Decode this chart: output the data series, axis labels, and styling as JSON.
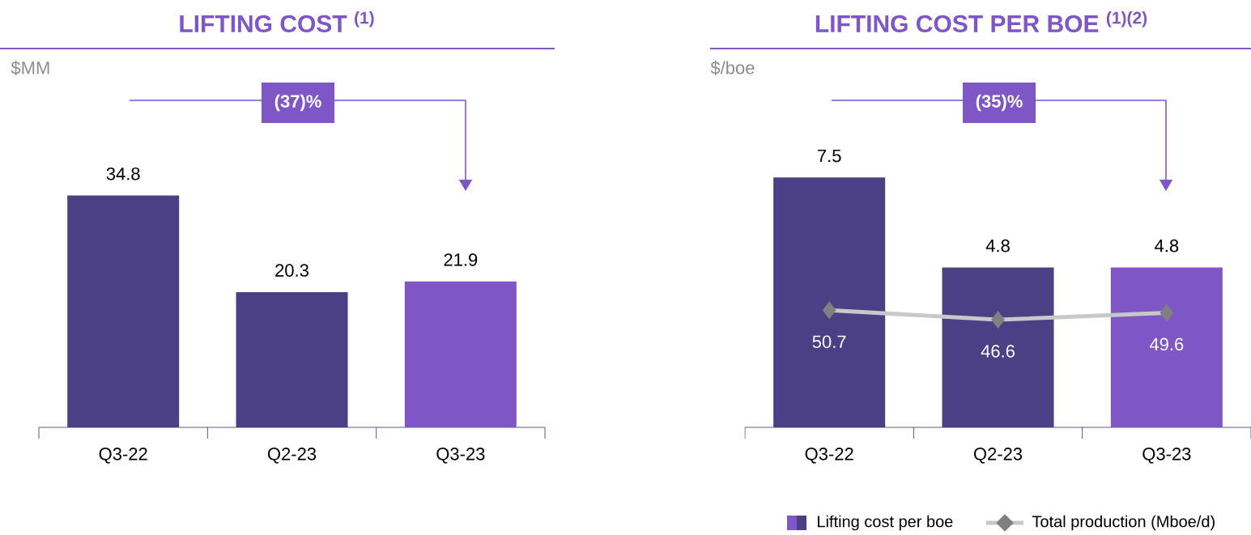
{
  "chart_data": [
    {
      "type": "bar",
      "title": "LIFTING COST $^{(1)}$",
      "ylabel": "$MM",
      "categories": [
        "Q3-22",
        "Q2-23",
        "Q3-23"
      ],
      "values": [
        34.8,
        20.3,
        21.9
      ],
      "colors": [
        "#4b3f85",
        "#4b3f85",
        "#7f56c5"
      ],
      "ylim": [
        0,
        52
      ],
      "data_labels": true,
      "annotations": [
        "(37)%"
      ]
    },
    {
      "type": "bar",
      "title": "LIFTING COST PER BOE $^{(1)(2)}$",
      "ylabel": "$/boe",
      "categories": [
        "Q3-22",
        "Q2-23",
        "Q3-23"
      ],
      "series": [
        {
          "name": "Lifting cost per boe",
          "type": "bar",
          "colors": [
            "#4b3f85",
            "#4b3f85",
            "#7f56c5"
          ],
          "values": [
            7.5,
            4.8,
            4.8
          ]
        },
        {
          "name": "Total production (Mboe/d)",
          "type": "line",
          "axis": "y2",
          "color": "#c8c8c8",
          "values": [
            50.7,
            46.6,
            49.6
          ]
        }
      ],
      "ylim": [
        0,
        10.4
      ],
      "y2lim": [
        0,
        150
      ],
      "marker": "diamond",
      "line_style": "solid",
      "data_labels": true,
      "legend": "bottom",
      "annotations": [
        "(35)%"
      ]
    }
  ]
}
